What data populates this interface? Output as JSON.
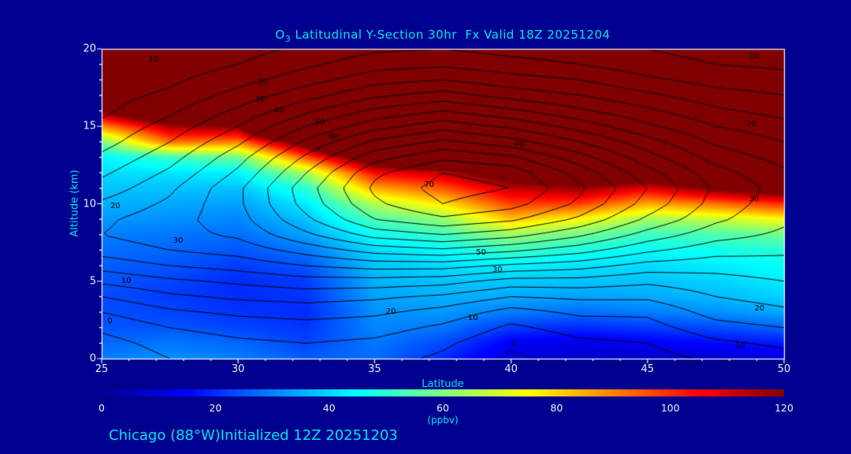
{
  "page": {
    "bg": "#000090"
  },
  "colors": {
    "background": "#000090",
    "frame": "#ffffff",
    "tick_text": "#e8f4f4",
    "accent_text": "#00e5e5",
    "contour_line": "#000000"
  },
  "title": {
    "pre": "O",
    "sub": "3",
    "rest": " Latitudinal Y-Section 30hr  Fx Valid 18Z 20251204"
  },
  "footer": {
    "text": "Chicago (88°W)Initialized 12Z 20251203"
  },
  "axes": {
    "xlabel": "Latitude",
    "ylabel": "Altitude (km)",
    "x_min": 25,
    "x_max": 50,
    "y_min": 0,
    "y_max": 20,
    "x_ticks": [
      25,
      30,
      35,
      40,
      45,
      50
    ],
    "x_minor_step": 1,
    "y_ticks": [
      0,
      5,
      10,
      15,
      20
    ],
    "y_minor_step": 1
  },
  "colorbar": {
    "min": 0,
    "max": 120,
    "ticks": [
      0,
      20,
      40,
      60,
      80,
      100,
      120
    ],
    "units": "(ppbv)",
    "stops": [
      {
        "v": 0,
        "c": "#000090"
      },
      {
        "v": 15,
        "c": "#0000ff"
      },
      {
        "v": 45,
        "c": "#00ffff"
      },
      {
        "v": 75,
        "c": "#ffff00"
      },
      {
        "v": 105,
        "c": "#ff0000"
      },
      {
        "v": 120,
        "c": "#800000"
      }
    ]
  },
  "chart_data": {
    "type": "heatmap",
    "title": "O3 Latitudinal Y-Section 30hr Fx Valid 18Z 20251204",
    "subtitle": "Chicago (88°W) Initialized 12Z 20251203",
    "xlabel": "Latitude",
    "ylabel": "Altitude (km)",
    "xlim": [
      25,
      50
    ],
    "ylim": [
      0,
      20
    ],
    "fill_field": "ozone mixing ratio (ppbv), colorbar 0-120, values above 120 saturate dark red",
    "contour_field": "overlaid black line contours (isotachs), interval 5, labeled every 10 from 0 to 70",
    "contour_levels": [
      -5,
      0,
      5,
      10,
      15,
      20,
      25,
      30,
      35,
      40,
      45,
      50,
      55,
      60,
      65,
      70
    ],
    "x_lats": [
      25,
      27.5,
      30,
      32.5,
      35,
      37.5,
      40,
      42.5,
      45,
      47.5,
      50
    ],
    "y_alts": [
      0,
      1,
      2,
      3,
      4,
      5,
      6,
      7,
      8,
      9,
      10,
      11,
      12,
      13,
      14,
      15,
      16,
      17,
      18,
      19,
      20
    ],
    "ozone_ppbv": [
      [
        30,
        27,
        25,
        24,
        24,
        25,
        26,
        28,
        30,
        33,
        36,
        38,
        41,
        44,
        60,
        88,
        120,
        190,
        290,
        390,
        490
      ],
      [
        32,
        29,
        25,
        23,
        22,
        23,
        25,
        27,
        29,
        32,
        35,
        38,
        42,
        52,
        92,
        115,
        150,
        240,
        340,
        440,
        540
      ],
      [
        30,
        27,
        23,
        21,
        20,
        20,
        22,
        25,
        28,
        31,
        34,
        38,
        44,
        58,
        90,
        120,
        185,
        285,
        385,
        485,
        585
      ],
      [
        26,
        23,
        21,
        20,
        21,
        22,
        25,
        29,
        34,
        38,
        43,
        50,
        65,
        95,
        130,
        210,
        310,
        410,
        510,
        610,
        710
      ],
      [
        28,
        29,
        31,
        32,
        34,
        36,
        38,
        41,
        46,
        54,
        66,
        85,
        105,
        135,
        210,
        310,
        410,
        510,
        610,
        710,
        810
      ],
      [
        20,
        24,
        29,
        33,
        36,
        38,
        41,
        45,
        52,
        62,
        78,
        95,
        112,
        155,
        260,
        360,
        460,
        560,
        660,
        760,
        860
      ],
      [
        10,
        14,
        22,
        30,
        35,
        39,
        44,
        52,
        63,
        82,
        98,
        112,
        132,
        205,
        305,
        405,
        505,
        605,
        705,
        805,
        905
      ],
      [
        8,
        12,
        20,
        28,
        34,
        38,
        42,
        48,
        58,
        75,
        98,
        117,
        142,
        225,
        325,
        425,
        525,
        625,
        725,
        825,
        925
      ],
      [
        8,
        14,
        22,
        30,
        35,
        38,
        41,
        45,
        52,
        64,
        85,
        108,
        138,
        215,
        315,
        415,
        515,
        615,
        715,
        815,
        915
      ],
      [
        9,
        16,
        24,
        32,
        37,
        40,
        43,
        47,
        54,
        68,
        92,
        122,
        165,
        245,
        345,
        445,
        545,
        645,
        745,
        845,
        945
      ],
      [
        11,
        18,
        27,
        35,
        40,
        43,
        46,
        50,
        58,
        75,
        100,
        132,
        185,
        265,
        365,
        465,
        565,
        665,
        765,
        865,
        965
      ]
    ],
    "wind_ms": [
      [
        -4,
        -2,
        1,
        5,
        10,
        16,
        22,
        27,
        30,
        29,
        26,
        22,
        19,
        16,
        13,
        11,
        9,
        8,
        7,
        6,
        5
      ],
      [
        0,
        2,
        5,
        9,
        14,
        19,
        25,
        30,
        33,
        33,
        31,
        29,
        26,
        23,
        20,
        17,
        14,
        11,
        9,
        7,
        6
      ],
      [
        2,
        4,
        7,
        11,
        16,
        21,
        27,
        32,
        36,
        38,
        39,
        39,
        36,
        33,
        29,
        25,
        21,
        17,
        13,
        10,
        8
      ],
      [
        3,
        5,
        8,
        12,
        17,
        23,
        30,
        37,
        44,
        49,
        52,
        53,
        50,
        46,
        41,
        35,
        29,
        23,
        18,
        14,
        11
      ],
      [
        2,
        4,
        7,
        11,
        16,
        23,
        32,
        42,
        52,
        60,
        64,
        66,
        64,
        58,
        51,
        43,
        36,
        29,
        23,
        18,
        14
      ],
      [
        -1,
        1,
        4,
        8,
        14,
        22,
        32,
        44,
        55,
        64,
        70,
        72,
        70,
        64,
        56,
        48,
        40,
        32,
        25,
        19,
        15
      ],
      [
        -6,
        -4,
        -1,
        3,
        10,
        18,
        29,
        41,
        52,
        61,
        67,
        70,
        68,
        61,
        52,
        44,
        36,
        28,
        22,
        17,
        13
      ],
      [
        -3,
        -1,
        2,
        6,
        11,
        18,
        27,
        37,
        46,
        54,
        59,
        61,
        58,
        52,
        45,
        38,
        31,
        25,
        20,
        15,
        12
      ],
      [
        -2,
        0,
        3,
        6,
        11,
        16,
        23,
        31,
        38,
        44,
        48,
        50,
        47,
        42,
        37,
        31,
        26,
        21,
        16,
        12,
        10
      ],
      [
        1,
        4,
        8,
        12,
        15,
        18,
        22,
        27,
        32,
        36,
        38,
        39,
        37,
        33,
        29,
        25,
        21,
        17,
        13,
        10,
        8
      ],
      [
        3,
        6,
        10,
        14,
        17,
        20,
        23,
        26,
        29,
        31,
        32,
        33,
        31,
        28,
        25,
        22,
        18,
        15,
        12,
        9,
        7
      ]
    ],
    "contour_labels": [
      {
        "lat": 26.9,
        "alt": 19.3,
        "text": "10"
      },
      {
        "lat": 30.9,
        "alt": 17.8,
        "text": "20"
      },
      {
        "lat": 30.8,
        "alt": 16.7,
        "text": "30"
      },
      {
        "lat": 31.5,
        "alt": 16.0,
        "text": "40"
      },
      {
        "lat": 33.0,
        "alt": 15.2,
        "text": "50"
      },
      {
        "lat": 33.5,
        "alt": 14.3,
        "text": "60"
      },
      {
        "lat": 40.3,
        "alt": 13.8,
        "text": "40"
      },
      {
        "lat": 37.0,
        "alt": 11.2,
        "text": "70"
      },
      {
        "lat": 38.9,
        "alt": 6.8,
        "text": "50"
      },
      {
        "lat": 39.5,
        "alt": 5.7,
        "text": "30"
      },
      {
        "lat": 35.6,
        "alt": 3.0,
        "text": "20"
      },
      {
        "lat": 38.6,
        "alt": 2.6,
        "text": "10"
      },
      {
        "lat": 40.1,
        "alt": 0.9,
        "text": "0"
      },
      {
        "lat": 25.5,
        "alt": 9.8,
        "text": "20"
      },
      {
        "lat": 27.8,
        "alt": 7.6,
        "text": "30"
      },
      {
        "lat": 25.9,
        "alt": 5.0,
        "text": "10"
      },
      {
        "lat": 25.3,
        "alt": 2.4,
        "text": "0"
      },
      {
        "lat": 48.9,
        "alt": 19.5,
        "text": "10"
      },
      {
        "lat": 48.8,
        "alt": 15.1,
        "text": "20"
      },
      {
        "lat": 48.9,
        "alt": 10.3,
        "text": "30"
      },
      {
        "lat": 49.1,
        "alt": 3.2,
        "text": "20"
      },
      {
        "lat": 48.4,
        "alt": 0.8,
        "text": "10"
      }
    ],
    "legend_position": "horizontal colorbar below plot, 0-120 ppbv",
    "grid": false
  }
}
